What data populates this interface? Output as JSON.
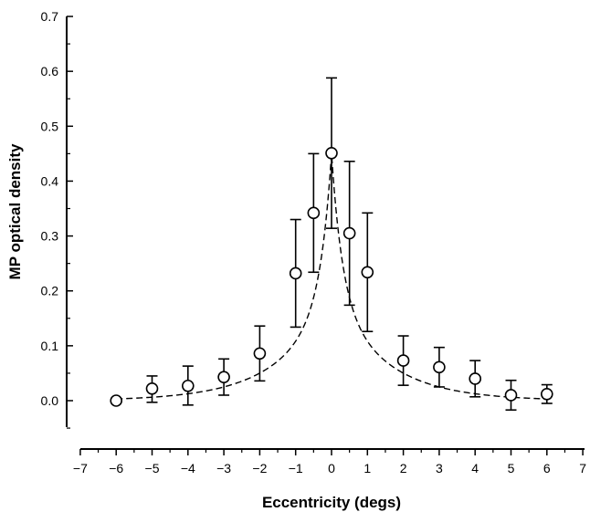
{
  "chart_data": {
    "type": "scatter",
    "title": "",
    "xlabel": "Eccentricity (degs)",
    "ylabel": "MP optical density",
    "xlim": [
      -7,
      7
    ],
    "ylim": [
      0,
      0.7
    ],
    "x_ticks": [
      -7,
      -6,
      -5,
      -4,
      -3,
      -2,
      -1,
      0,
      1,
      2,
      3,
      4,
      5,
      6,
      7
    ],
    "y_ticks": [
      "0.0",
      "0.1",
      "0.2",
      "0.3",
      "0.4",
      "0.5",
      "0.6",
      "0.7"
    ],
    "grid": false,
    "legend": "none",
    "series": [
      {
        "marker": "open-circle",
        "error_bars": true,
        "points": [
          {
            "x": -6,
            "y": 0.0,
            "err_low": 0.0,
            "err_high": 0.0
          },
          {
            "x": -5,
            "y": 0.022,
            "err_low": 0.025,
            "err_high": 0.023
          },
          {
            "x": -4,
            "y": 0.027,
            "err_low": 0.035,
            "err_high": 0.036
          },
          {
            "x": -3,
            "y": 0.043,
            "err_low": 0.033,
            "err_high": 0.033
          },
          {
            "x": -2,
            "y": 0.086,
            "err_low": 0.05,
            "err_high": 0.05
          },
          {
            "x": -1,
            "y": 0.232,
            "err_low": 0.098,
            "err_high": 0.098
          },
          {
            "x": -0.5,
            "y": 0.342,
            "err_low": 0.108,
            "err_high": 0.108
          },
          {
            "x": 0,
            "y": 0.451,
            "err_low": 0.137,
            "err_high": 0.137
          },
          {
            "x": 0.5,
            "y": 0.305,
            "err_low": 0.131,
            "err_high": 0.131
          },
          {
            "x": 1,
            "y": 0.234,
            "err_low": 0.108,
            "err_high": 0.108
          },
          {
            "x": 2,
            "y": 0.073,
            "err_low": 0.045,
            "err_high": 0.045
          },
          {
            "x": 3,
            "y": 0.061,
            "err_low": 0.036,
            "err_high": 0.036
          },
          {
            "x": 4,
            "y": 0.04,
            "err_low": 0.033,
            "err_high": 0.033
          },
          {
            "x": 5,
            "y": 0.01,
            "err_low": 0.027,
            "err_high": 0.027
          },
          {
            "x": 6,
            "y": 0.012,
            "err_low": 0.017,
            "err_high": 0.017
          }
        ]
      }
    ],
    "fit_curve": {
      "style": "dashed",
      "peak_x": 0,
      "peak_y": 0.45,
      "x_range": [
        -6,
        6
      ]
    }
  },
  "colors": {
    "axis": "#000000",
    "marker_fill": "#ffffff",
    "marker_stroke": "#000000",
    "curve": "#000000"
  }
}
